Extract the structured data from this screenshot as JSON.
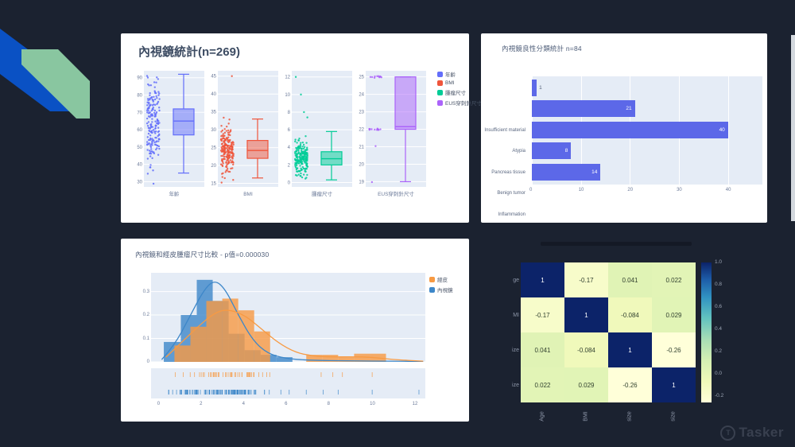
{
  "slide": {
    "bg": "#1b2230",
    "ribbon_blue": "#0a51c4",
    "ribbon_green": "#89c6a0",
    "edge_sliver_color": "#e8ecf2"
  },
  "watermark": {
    "label": "Tasker",
    "color": "#39404f"
  },
  "chart_data": [
    {
      "type": "box",
      "title": "內視鏡統計(n=269)",
      "legend_position": "right",
      "series": [
        {
          "name": "年齡",
          "color": "#636efa",
          "ylim": [
            27,
            94
          ],
          "yticks": [
            30,
            40,
            50,
            60,
            70,
            80,
            90
          ],
          "box": {
            "whisker_low": 35,
            "q1": 57,
            "median": 65,
            "q3": 72,
            "whisker_high": 92
          },
          "scatter": {
            "n": 190,
            "mean": 63,
            "sd": 12,
            "min": 28,
            "max": 92
          },
          "outliers": []
        },
        {
          "name": "BMI",
          "color": "#ef553b",
          "ylim": [
            14,
            46.5
          ],
          "yticks": [
            15,
            20,
            25,
            30,
            35,
            40,
            45
          ],
          "box": {
            "whisker_low": 16.5,
            "q1": 22,
            "median": 24.2,
            "q3": 27,
            "whisker_high": 33
          },
          "scatter": {
            "n": 200,
            "mean": 24.2,
            "sd": 3.2,
            "min": 15.8,
            "max": 33.8
          },
          "outliers": [
            45,
            15.2
          ]
        },
        {
          "name": "腫瘤尺寸",
          "color": "#00cc96",
          "ylim": [
            -0.5,
            12.7
          ],
          "yticks": [
            0,
            2,
            4,
            6,
            8,
            10,
            12
          ],
          "box": {
            "whisker_low": 0.3,
            "q1": 2,
            "median": 2.7,
            "q3": 3.5,
            "whisker_high": 5.8
          },
          "scatter": {
            "n": 200,
            "mean": 2.7,
            "sd": 1.0,
            "min": 0.4,
            "max": 5.8
          },
          "outliers": [
            7.4,
            8,
            10,
            12
          ]
        },
        {
          "name": "EUS穿刺針尺寸",
          "color": "#ab63fa",
          "ylim": [
            18.7,
            25.35
          ],
          "yticks": [
            19,
            20,
            21,
            22,
            23,
            24,
            25
          ],
          "box": {
            "whisker_low": 19,
            "q1": 22,
            "median": 22.15,
            "q3": 25,
            "whisker_high": 25
          },
          "clusters": [
            {
              "value": 25,
              "n": 11
            },
            {
              "value": 22,
              "n": 13
            },
            {
              "value": 21,
              "n": 1
            },
            {
              "value": 19,
              "n": 1
            }
          ],
          "outliers": []
        }
      ]
    },
    {
      "type": "bar",
      "orientation": "horizontal",
      "title": "內視鏡良性分類統計 n=84",
      "categories": [
        "Insufficient material",
        "Atypia",
        "Pancreas tissue",
        "Benign tumor",
        "Inflammation"
      ],
      "values": [
        1,
        21,
        40,
        8,
        14
      ],
      "xticks": [
        0,
        10,
        20,
        30,
        40
      ],
      "xlim": [
        0,
        47
      ],
      "bar_color": "#5c68e8",
      "value_label_color_inside": "#ffffff"
    },
    {
      "type": "histogram",
      "title": "內視鏡和經皮腫瘤尺寸比較 - p值=0.000030",
      "xlim": [
        -0.4,
        12.5
      ],
      "xticks": [
        0,
        2,
        4,
        6,
        8,
        10,
        12
      ],
      "ylim": [
        0,
        0.38
      ],
      "yticks": [
        0,
        0.1,
        0.2,
        0.3
      ],
      "legend_order": [
        1,
        0
      ],
      "series": [
        {
          "name": "內視鏡",
          "color": "#3d87c9",
          "bars": [
            [
              0.2,
              1.0,
              0.085
            ],
            [
              1.0,
              1.75,
              0.2
            ],
            [
              1.75,
              2.5,
              0.35
            ],
            [
              2.5,
              3.25,
              0.26
            ],
            [
              3.25,
              4.0,
              0.12
            ],
            [
              4.0,
              4.75,
              0.05
            ],
            [
              4.75,
              5.5,
              0.03
            ],
            [
              5.5,
              6.25,
              0.02
            ]
          ],
          "kde": [
            [
              0.1,
              0.01
            ],
            [
              0.7,
              0.07
            ],
            [
              1.4,
              0.19
            ],
            [
              2.1,
              0.31
            ],
            [
              2.6,
              0.35
            ],
            [
              3.1,
              0.31
            ],
            [
              3.7,
              0.2
            ],
            [
              4.4,
              0.09
            ],
            [
              5.1,
              0.035
            ],
            [
              5.9,
              0.015
            ],
            [
              7,
              0.007
            ],
            [
              9,
              0.004
            ],
            [
              11,
              0.003
            ],
            [
              12.4,
              0.002
            ]
          ],
          "rug": {
            "n": 115,
            "mean": 2.8,
            "sd": 1.15,
            "min": 0.3,
            "max": 6.2,
            "extra": [
              6.9,
              7.7,
              8.4,
              10.0,
              12.2
            ]
          }
        },
        {
          "name": "經皮",
          "color": "#f79a43",
          "bars": [
            [
              0.7,
              1.45,
              0.07
            ],
            [
              1.45,
              2.2,
              0.15
            ],
            [
              2.2,
              2.95,
              0.26
            ],
            [
              2.95,
              3.7,
              0.27
            ],
            [
              3.7,
              4.45,
              0.22
            ],
            [
              4.45,
              5.2,
              0.13
            ],
            [
              6.9,
              7.65,
              0.03
            ],
            [
              7.65,
              8.4,
              0.03
            ],
            [
              8.4,
              9.15,
              0.02
            ],
            [
              9.15,
              9.9,
              0.035
            ],
            [
              9.9,
              10.65,
              0.035
            ]
          ],
          "kde": [
            [
              0.3,
              0.02
            ],
            [
              1,
              0.08
            ],
            [
              1.8,
              0.15
            ],
            [
              2.6,
              0.21
            ],
            [
              3.2,
              0.225
            ],
            [
              4,
              0.2
            ],
            [
              4.8,
              0.14
            ],
            [
              5.6,
              0.08
            ],
            [
              6.4,
              0.04
            ],
            [
              7.2,
              0.025
            ],
            [
              8,
              0.021
            ],
            [
              9,
              0.022
            ],
            [
              10,
              0.02
            ],
            [
              11,
              0.01
            ],
            [
              12.4,
              0.003
            ]
          ],
          "rug": {
            "n": 46,
            "mean": 3.1,
            "sd": 1.15,
            "min": 0.7,
            "max": 5.6,
            "extra": [
              7.6,
              8.15,
              8.6,
              10.0
            ]
          }
        }
      ]
    },
    {
      "type": "heatmap",
      "colormap": "YlGnBu",
      "row_labels": [
        "ge",
        "MI",
        "ize",
        "ize"
      ],
      "col_labels": [
        "Age",
        "BMI",
        "size",
        "size"
      ],
      "values": [
        [
          1,
          -0.17,
          0.041,
          0.022
        ],
        [
          -0.17,
          1,
          -0.084,
          0.029
        ],
        [
          0.041,
          -0.084,
          1,
          -0.26
        ],
        [
          0.022,
          0.029,
          -0.26,
          1
        ]
      ],
      "labels": [
        [
          "1",
          "-0.17",
          "0.041",
          "0.022"
        ],
        [
          "-0.17",
          "1",
          "-0.084",
          "0.029"
        ],
        [
          "0.041",
          "-0.084",
          "1",
          "-0.26"
        ],
        [
          "0.022",
          "0.029",
          "-0.26",
          "1"
        ]
      ],
      "vmin": -0.26,
      "vmax": 1,
      "colorbar_ticks": [
        "1.0",
        "0.8",
        "0.6",
        "0.4",
        "0.2",
        "0.0",
        "-0.2"
      ],
      "colormap_stops": [
        [
          "#ffffd9",
          0
        ],
        [
          "#eff9b9",
          0.15
        ],
        [
          "#d5efb3",
          0.3
        ],
        [
          "#a8ddb5",
          0.45
        ],
        [
          "#63c3bf",
          0.6
        ],
        [
          "#3193c2",
          0.75
        ],
        [
          "#1d5ca8",
          0.88
        ],
        [
          "#0c2369",
          1
        ]
      ]
    }
  ]
}
